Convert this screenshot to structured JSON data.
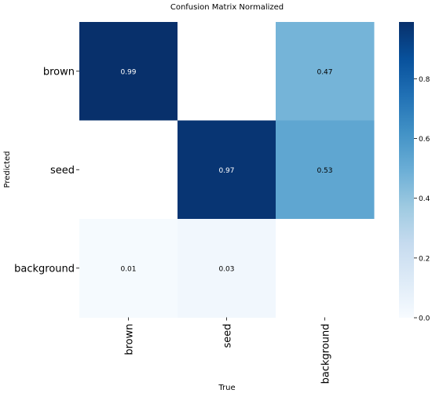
{
  "chart_data": {
    "type": "heatmap",
    "title": "Confusion Matrix Normalized",
    "xlabel": "True",
    "ylabel": "Predicted",
    "x_categories": [
      "brown",
      "seed",
      "background"
    ],
    "y_categories": [
      "brown",
      "seed",
      "background"
    ],
    "values": [
      [
        0.99,
        null,
        0.47
      ],
      [
        null,
        0.97,
        0.53
      ],
      [
        0.01,
        0.03,
        null
      ]
    ],
    "labels": [
      [
        "0.99",
        "",
        "0.47"
      ],
      [
        "",
        "0.97",
        "0.53"
      ],
      [
        "0.01",
        "0.03",
        ""
      ]
    ],
    "colorbar": {
      "range": [
        0.0,
        0.99
      ],
      "ticks": [
        0.0,
        0.2,
        0.4,
        0.6,
        0.8
      ],
      "tick_labels": [
        "0.0",
        "0.2",
        "0.4",
        "0.6",
        "0.8"
      ],
      "colormap": "Blues",
      "color_low": "#f7fbff",
      "color_high": "#08306b"
    },
    "empty_cell_color": "#ffffff",
    "grid": false
  }
}
